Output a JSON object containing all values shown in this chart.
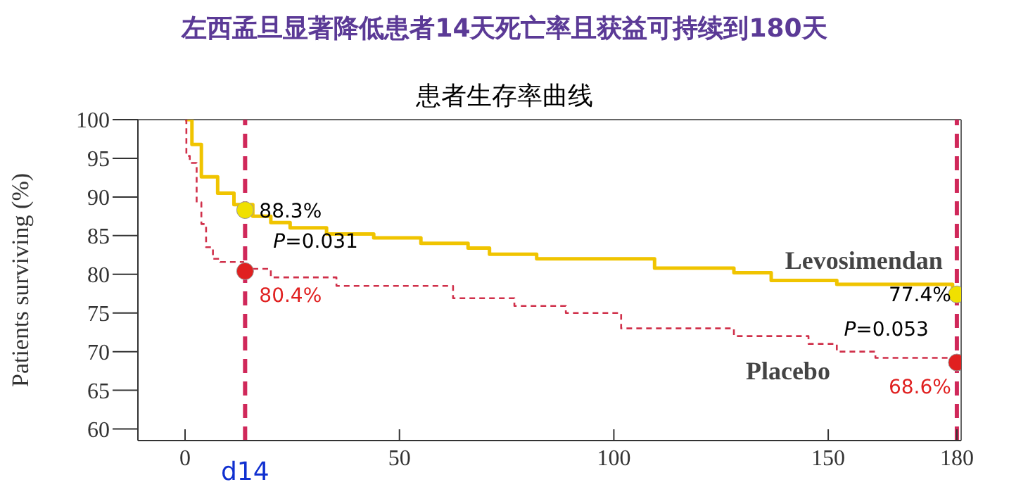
{
  "chart_data": {
    "type": "step",
    "title": "左西孟旦显著降低患者14天死亡率且获益可持续到180天",
    "subtitle": "患者生存率曲线",
    "ylabel": "Patients surviving (%)",
    "xlim": [
      -11,
      181
    ],
    "xticks": [
      0,
      50,
      100,
      150,
      180
    ],
    "ylim": [
      58.5,
      100
    ],
    "yticks": [
      60,
      65,
      70,
      75,
      80,
      85,
      90,
      95,
      100
    ],
    "series": [
      {
        "name": "Levosimendan",
        "color": "#f0c400",
        "line_style": "solid",
        "x": [
          0,
          1.6,
          3.8,
          7.6,
          11.4,
          15.8,
          20,
          24.5,
          33,
          44,
          55,
          66,
          71,
          82,
          103,
          109.5,
          128,
          136.7,
          152,
          179,
          180
        ],
        "values": [
          100,
          96.8,
          92.6,
          90.5,
          89,
          87.5,
          86.7,
          86,
          85.2,
          84.7,
          84,
          83.4,
          82.6,
          82,
          82,
          80.8,
          80.2,
          79.2,
          78.7,
          78.1,
          77.4
        ]
      },
      {
        "name": "Placebo",
        "color": "#d0304a",
        "line_style": "dashed",
        "x": [
          0,
          0.3,
          1.1,
          2.7,
          3.8,
          4.9,
          6.5,
          8.2,
          13.6,
          20,
          35.3,
          62.5,
          76.8,
          88.8,
          101.7,
          128,
          145.4,
          152,
          161,
          180
        ],
        "values": [
          100,
          95.3,
          94.4,
          89.3,
          86.5,
          83.5,
          82,
          81.6,
          80.7,
          79.6,
          78.5,
          76.9,
          75.9,
          75,
          73,
          72,
          71,
          70,
          69.2,
          68.6
        ]
      },
      {
        "type": "scatter",
        "color": "#f0e000",
        "marker": "circle",
        "x": [
          14,
          180
        ],
        "values": [
          88.3,
          77.4
        ],
        "value_labels": [
          "88.3%",
          "77.4%"
        ]
      },
      {
        "type": "scatter",
        "color": "#e02020",
        "marker": "circle",
        "x": [
          14,
          180
        ],
        "values": [
          80.4,
          68.6
        ],
        "value_labels": [
          "80.4%",
          "68.6%"
        ]
      }
    ],
    "ref_lines": [
      {
        "axis": "x",
        "value": 14,
        "label": "d14",
        "color": "#d0285a",
        "line_style": "dashed"
      },
      {
        "axis": "x",
        "value": 180,
        "label": null,
        "color": "#d0285a",
        "line_style": "dashed"
      }
    ],
    "annotations": [
      "P=0.031",
      "P=0.053"
    ]
  }
}
